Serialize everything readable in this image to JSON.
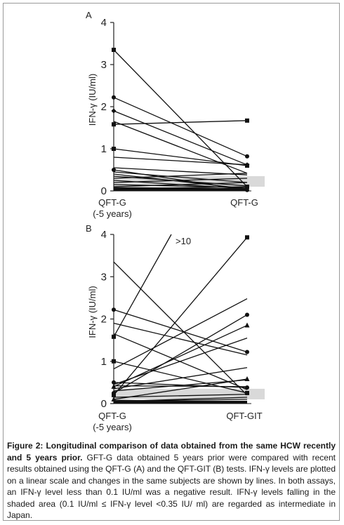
{
  "figure": {
    "caption_title": "Figure 2: Longitudinal comparison of data obtained from the same HCW recently and 5 years prior.",
    "caption_body": " GFT-G data obtained 5 years prior were compared with recent results obtained using the QFT-G (A) and the QFT-GIT (B) tests. IFN-γ levels are plotted on a linear scale and changes in the same subjects are shown by lines. In both assays, an IFN-γ level less than 0.1 IU/ml was a negative result. IFN-γ levels falling in the shaded area (0.1 IU/ml ≤ IFN-γ level <0.35 IU/ ml) are regarded as intermediate in Japan."
  },
  "colors": {
    "line": "#111111",
    "shade": "#d9d9d9",
    "axis": "#222222"
  },
  "chart_data": [
    {
      "type": "line",
      "panel": "A",
      "ylabel": "IFN-γ (IU/ml)",
      "ylim": [
        0,
        4
      ],
      "yticks": [
        "0",
        "1",
        "2",
        "3",
        "4"
      ],
      "categories": [
        "QFT-G\n(-5 years)",
        "QFT-G"
      ],
      "category_lines": [
        [
          "QFT-G",
          "(-5 years)"
        ],
        [
          "QFT-G"
        ]
      ],
      "shaded_band": [
        0.1,
        0.35
      ],
      "pairs": [
        {
          "start": 3.35,
          "end": 0.1,
          "marker": "square"
        },
        {
          "start": 2.22,
          "end": 0.82,
          "marker": "circle"
        },
        {
          "start": 1.9,
          "end": 0.62,
          "marker": "diamond"
        },
        {
          "start": 1.65,
          "end": 0.42,
          "marker": "none"
        },
        {
          "start": 1.58,
          "end": 1.67,
          "marker": "square"
        },
        {
          "start": 1.0,
          "end": 0.6,
          "marker": "square"
        },
        {
          "start": 0.8,
          "end": 0.62,
          "marker": "none"
        },
        {
          "start": 0.55,
          "end": 0.38,
          "marker": "none"
        },
        {
          "start": 0.5,
          "end": 0.02,
          "marker": "circle"
        },
        {
          "start": 0.45,
          "end": 0.2,
          "marker": "none"
        },
        {
          "start": 0.4,
          "end": 0.05,
          "marker": "none"
        },
        {
          "start": 0.35,
          "end": 0.12,
          "marker": "none"
        },
        {
          "start": 0.3,
          "end": 0.42,
          "marker": "none"
        },
        {
          "start": 0.25,
          "end": 0.05,
          "marker": "none"
        },
        {
          "start": 0.2,
          "end": 0.3,
          "marker": "none"
        },
        {
          "start": 0.15,
          "end": 0.08,
          "marker": "none"
        },
        {
          "start": 0.1,
          "end": 0.2,
          "marker": "none"
        },
        {
          "start": 0.05,
          "end": 0.1,
          "marker": "none"
        },
        {
          "start": 0.02,
          "end": 0.02,
          "marker": "none"
        },
        {
          "start": 0.06,
          "end": 0.04,
          "marker": "none"
        },
        {
          "start": 0.08,
          "end": 0.05,
          "marker": "none"
        }
      ]
    },
    {
      "type": "line",
      "panel": "B",
      "ylabel": "IFN-γ (IU/ml)",
      "ylim": [
        0,
        4
      ],
      "yticks": [
        "0",
        "1",
        "2",
        "3",
        "4"
      ],
      "categories": [
        "QFT-G\n(-5 years)",
        "QFT-GIT"
      ],
      "category_lines": [
        [
          "QFT-G",
          "(-5 years)"
        ],
        [
          "QFT-GIT"
        ]
      ],
      "shaded_band": [
        0.1,
        0.35
      ],
      "annotation": ">10",
      "pairs": [
        {
          "start": 1.58,
          "end": 4.0,
          "marker": "square",
          "offscale_end": true
        },
        {
          "start": 3.35,
          "end": 0.2,
          "marker": "none"
        },
        {
          "start": 2.22,
          "end": 1.22,
          "marker": "circle"
        },
        {
          "start": 1.9,
          "end": 1.15,
          "marker": "none"
        },
        {
          "start": 1.65,
          "end": 0.33,
          "marker": "none"
        },
        {
          "start": 1.0,
          "end": 0.25,
          "marker": "square"
        },
        {
          "start": 0.82,
          "end": 2.48,
          "marker": "none"
        },
        {
          "start": 0.5,
          "end": 0.38,
          "marker": "circle"
        },
        {
          "start": 0.45,
          "end": 1.55,
          "marker": "none"
        },
        {
          "start": 0.4,
          "end": 1.85,
          "marker": "triangle"
        },
        {
          "start": 0.35,
          "end": 0.85,
          "marker": "none"
        },
        {
          "start": 0.3,
          "end": 0.56,
          "marker": "none"
        },
        {
          "start": 0.25,
          "end": 2.1,
          "marker": "circle"
        },
        {
          "start": 0.2,
          "end": 3.93,
          "marker": "square"
        },
        {
          "start": 0.15,
          "end": 0.22,
          "marker": "none"
        },
        {
          "start": 0.1,
          "end": 0.58,
          "marker": "triangle"
        },
        {
          "start": 0.42,
          "end": 0.4,
          "marker": "none"
        },
        {
          "start": 0.05,
          "end": 0.15,
          "marker": "none"
        },
        {
          "start": 0.02,
          "end": 0.05,
          "marker": "none"
        },
        {
          "start": 0.08,
          "end": 0.03,
          "marker": "none"
        },
        {
          "start": 0.06,
          "end": 0.1,
          "marker": "none"
        }
      ]
    }
  ]
}
